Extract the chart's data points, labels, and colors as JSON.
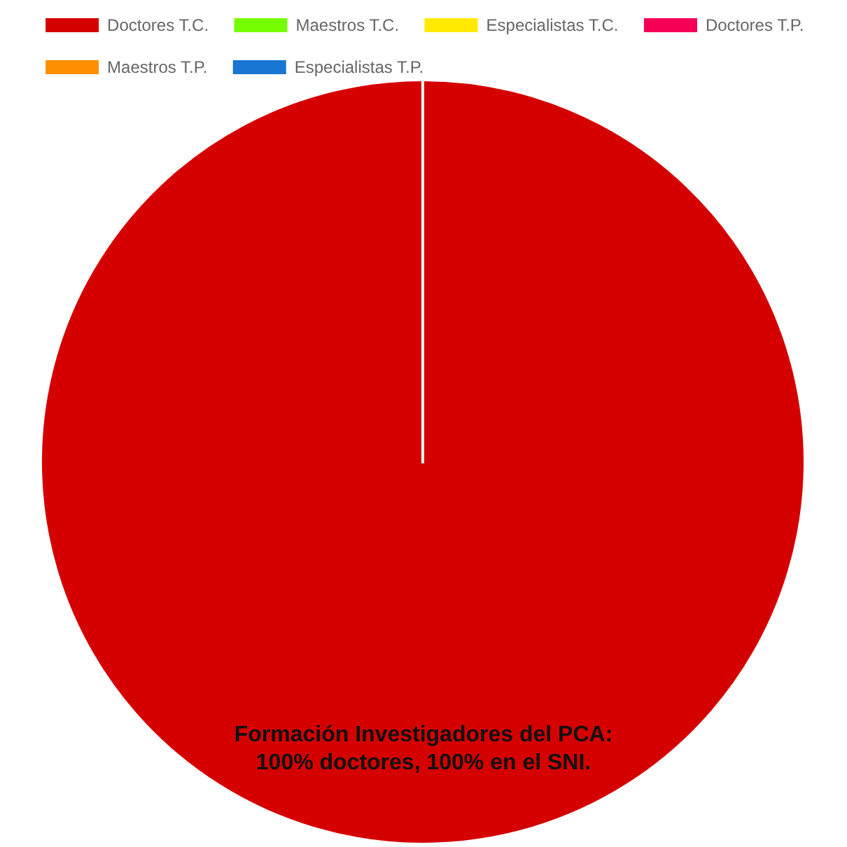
{
  "chart_data": {
    "type": "pie",
    "title": "Formación Investigadores del PCA:",
    "subtitle": "100% doctores, 100% en el SNI.",
    "legend": "top",
    "categories": [
      "Doctores T.C.",
      "Maestros T.C.",
      "Especialistas T.C.",
      "Doctores T.P.",
      "Maestros T.P.",
      "Especialistas T.P."
    ],
    "values": [
      100,
      0,
      0,
      0,
      0,
      0
    ],
    "colors": [
      "#d50000",
      "#76ff03",
      "#ffea00",
      "#f50057",
      "#ff8f00",
      "#1976d2"
    ]
  }
}
